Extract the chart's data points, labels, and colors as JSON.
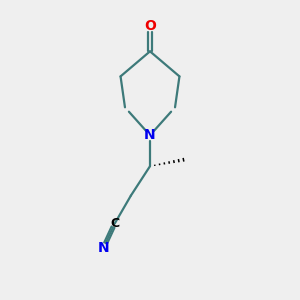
{
  "bg_color": "#efefef",
  "bond_color": "#3d7a7a",
  "n_color": "#0000ee",
  "o_color": "#ee0000",
  "c_color": "#000000",
  "line_width": 1.6,
  "figsize": [
    3.0,
    3.0
  ],
  "dpi": 100,
  "xlim": [
    0,
    10
  ],
  "ylim": [
    0,
    10
  ]
}
